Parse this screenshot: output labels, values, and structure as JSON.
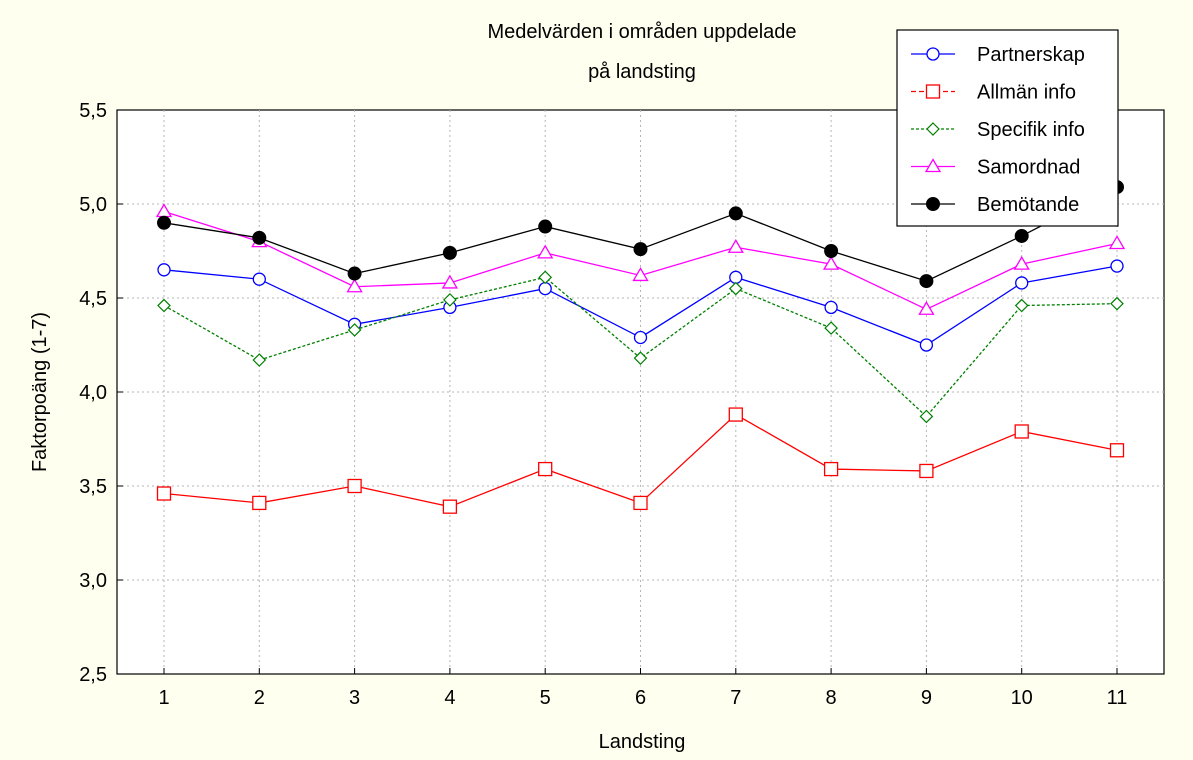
{
  "chart_data": {
    "type": "line",
    "title_line1": "Medelvärden i områden uppdelade",
    "title_line2": "på landsting",
    "xlabel": "Landsting",
    "ylabel": "Faktorpoäng (1-7)",
    "categories": [
      "1",
      "2",
      "3",
      "4",
      "5",
      "6",
      "7",
      "8",
      "9",
      "10",
      "11"
    ],
    "ylim": [
      2.5,
      5.5
    ],
    "yticks": [
      2.5,
      3.0,
      3.5,
      4.0,
      4.5,
      5.0,
      5.5
    ],
    "ytick_labels": [
      "2,5",
      "3,0",
      "3,5",
      "4,0",
      "4,5",
      "5,0",
      "5,5"
    ],
    "grid": true,
    "legend_position": "top-right",
    "series": [
      {
        "name": "Partnerskap",
        "color": "#0000ff",
        "marker": "circle-open",
        "line": "solid",
        "values": [
          4.65,
          4.6,
          4.36,
          4.45,
          4.55,
          4.29,
          4.61,
          4.45,
          4.25,
          4.58,
          4.67
        ]
      },
      {
        "name": "Allmän info",
        "color": "#ff0000",
        "marker": "square-open",
        "line": "solid",
        "values": [
          3.46,
          3.41,
          3.5,
          3.39,
          3.59,
          3.41,
          3.88,
          3.59,
          3.58,
          3.79,
          3.69
        ]
      },
      {
        "name": "Specifik info",
        "color": "#008000",
        "marker": "diamond-open",
        "line": "dotted",
        "values": [
          4.46,
          4.17,
          4.33,
          4.49,
          4.61,
          4.18,
          4.55,
          4.34,
          3.87,
          4.46,
          4.47
        ]
      },
      {
        "name": "Samordnad",
        "color": "#ff00ff",
        "marker": "triangle-open",
        "line": "solid",
        "values": [
          4.96,
          4.8,
          4.56,
          4.58,
          4.74,
          4.62,
          4.77,
          4.68,
          4.44,
          4.68,
          4.79
        ]
      },
      {
        "name": "Bemötande",
        "color": "#000000",
        "marker": "circle-filled",
        "line": "solid",
        "values": [
          4.9,
          4.82,
          4.63,
          4.74,
          4.88,
          4.76,
          4.95,
          4.75,
          4.59,
          4.83,
          5.09
        ]
      }
    ]
  }
}
